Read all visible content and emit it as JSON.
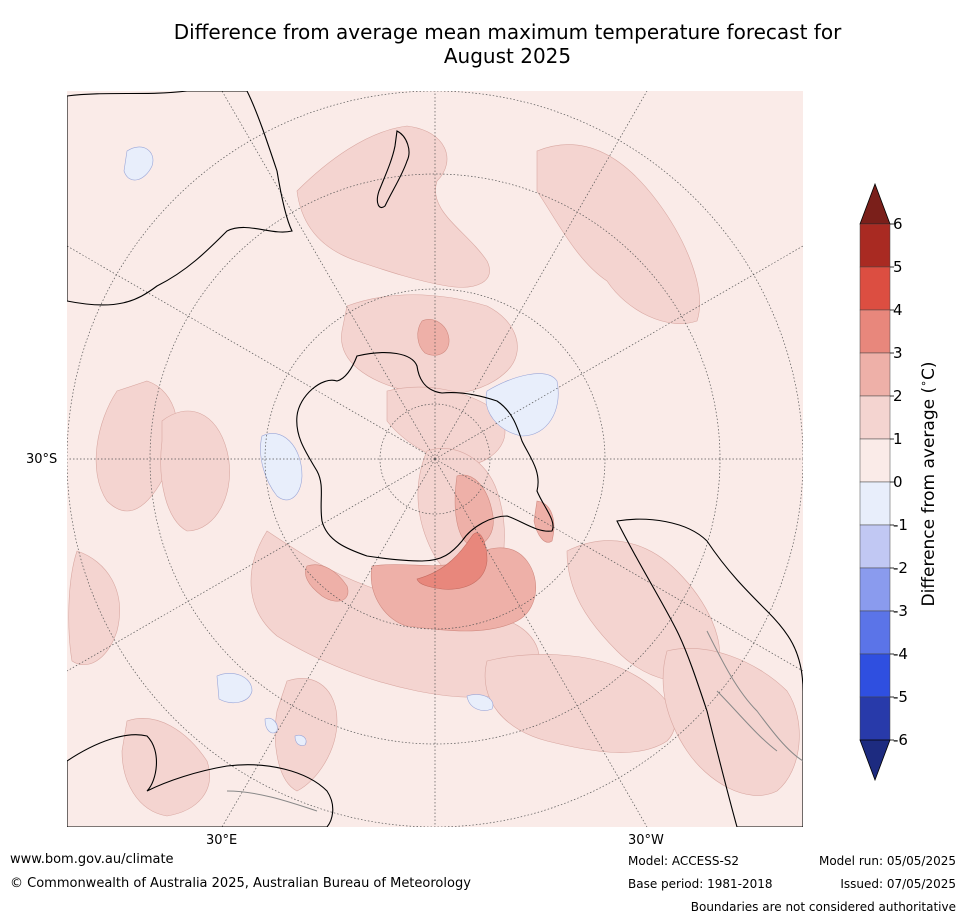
{
  "title": {
    "line1": "Difference from average mean maximum temperature forecast for",
    "line2": "August 2025"
  },
  "map": {
    "projection": "south polar stereographic",
    "lat_label": "30°S",
    "lon_labels": {
      "east": "30°E",
      "west": "30°W"
    }
  },
  "colorbar": {
    "label": "Difference from average (",
    "label_degree": "∘",
    "label_unit": "C)",
    "ticks": [
      "6",
      "5",
      "4",
      "3",
      "2",
      "1",
      "0",
      "-1",
      "-2",
      "-3",
      "-4",
      "-5",
      "-6"
    ],
    "colors": {
      "over": "#7a1f1a",
      "5_6": "#a92a22",
      "4_5": "#dc4e41",
      "3_4": "#e8877c",
      "2_3": "#eeb0a8",
      "1_2": "#f4d4d0",
      "0_1": "#faebe8",
      "m1_0": "#e8eefb",
      "m2_m1": "#c1c8f3",
      "m3_m2": "#8a9bee",
      "m4_m3": "#5b74e8",
      "m5_m4": "#2f4fe0",
      "m6_m5": "#283aaa",
      "under": "#1d2b80"
    }
  },
  "footer": {
    "website": "www.bom.gov.au/climate",
    "copyright": "© Commonwealth of Australia 2025, Australian Bureau of Meteorology",
    "model": "Model: ACCESS-S2",
    "base_period": "Base period: 1981-2018",
    "model_run": "Model run: 05/05/2025",
    "issued": "Issued: 07/05/2025",
    "disclaimer": "Boundaries are not considered authoritative"
  }
}
